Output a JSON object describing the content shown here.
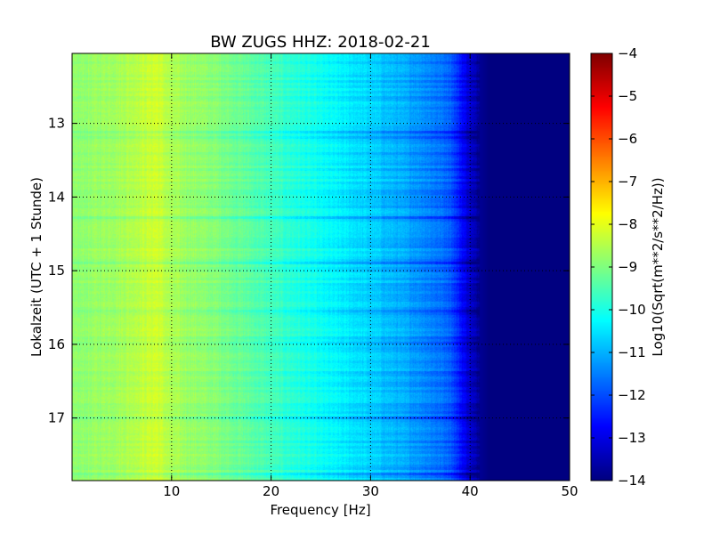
{
  "chart_data": {
    "type": "heatmap",
    "title": "BW ZUGS HHZ: 2018-02-21",
    "xlabel": "Frequency [Hz]",
    "ylabel": "Lokalzeit (UTC + 1 Stunde)",
    "xlim": [
      0,
      50
    ],
    "ylim": [
      12.05,
      17.85
    ],
    "y_inverted": true,
    "grid": true,
    "xticks": [
      10,
      20,
      30,
      40,
      50
    ],
    "yticks": [
      13,
      14,
      15,
      16,
      17
    ],
    "colormap": "jet",
    "colorbar": {
      "label": "Log10(Sqrt(m**2/s**2/Hz))",
      "range": [
        -14,
        -4
      ],
      "ticks": [
        -4,
        -5,
        -6,
        -7,
        -8,
        -9,
        -10,
        -11,
        -12,
        -13,
        -14
      ]
    },
    "spectrum_profile": {
      "frequency_hz": [
        0,
        5,
        8.5,
        10,
        15,
        20,
        25,
        30,
        35,
        38,
        40,
        41,
        42,
        50
      ],
      "log10_amplitude": [
        -8.9,
        -8.6,
        -8.2,
        -8.6,
        -9.0,
        -9.6,
        -10.2,
        -10.7,
        -11.3,
        -11.8,
        -13.3,
        -13.8,
        -14,
        -14
      ]
    }
  }
}
